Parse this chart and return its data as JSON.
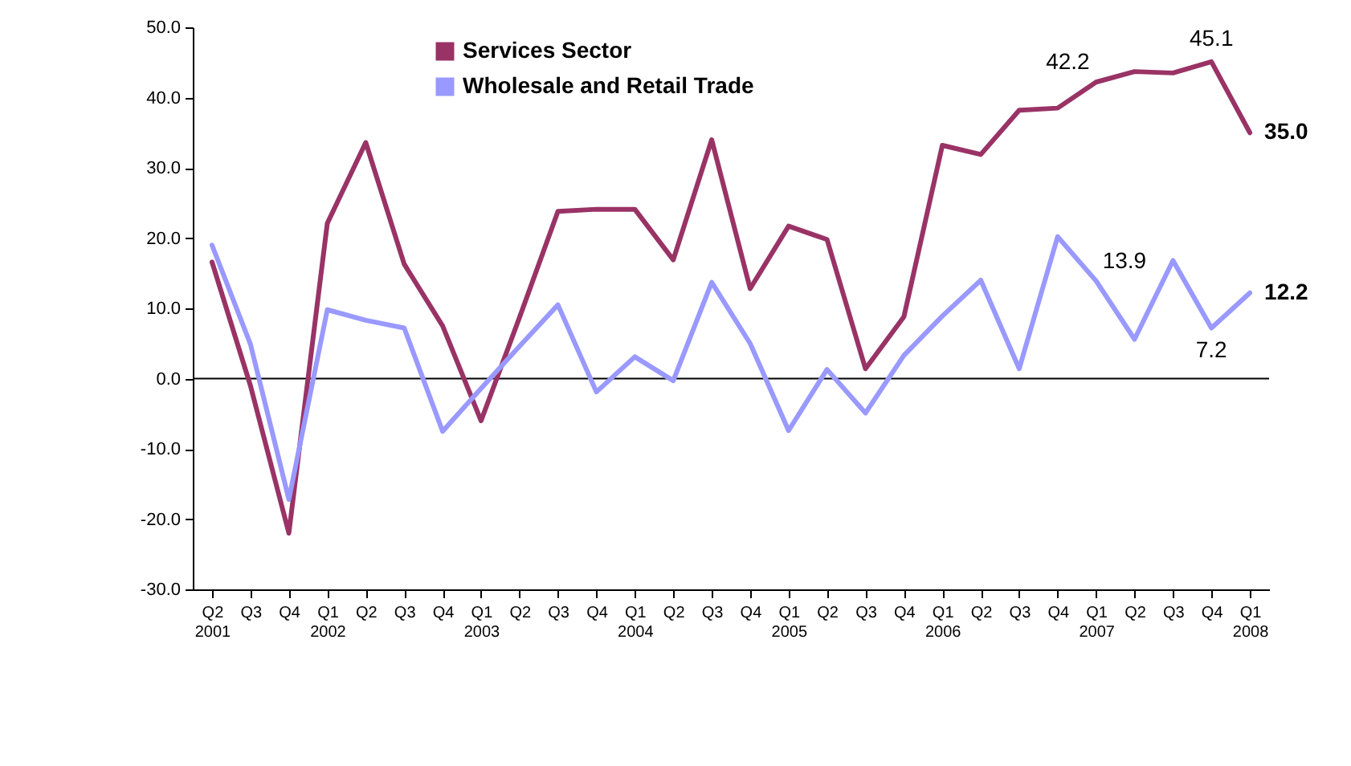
{
  "chart_data": {
    "type": "line",
    "categories": [
      "Q2 2001",
      "Q3",
      "Q4",
      "Q1 2002",
      "Q2",
      "Q3",
      "Q4",
      "Q1 2003",
      "Q2",
      "Q3",
      "Q4",
      "Q1 2004",
      "Q2",
      "Q3",
      "Q4",
      "Q1 2005",
      "Q2",
      "Q3",
      "Q4",
      "Q1 2006",
      "Q2",
      "Q3",
      "Q4",
      "Q1 2007",
      "Q2",
      "Q3",
      "Q4",
      "Q1 2008"
    ],
    "series": [
      {
        "name": "Services Sector",
        "color": "#993366",
        "values": [
          16.6,
          -1.0,
          -22.0,
          22.1,
          33.6,
          16.3,
          7.5,
          -6.0,
          8.7,
          23.8,
          24.1,
          24.1,
          16.9,
          34.0,
          12.8,
          21.7,
          19.8,
          1.4,
          8.8,
          33.2,
          31.9,
          38.2,
          38.5,
          42.2,
          43.7,
          43.5,
          45.1,
          35.0
        ],
        "value_labels": [
          null,
          null,
          null,
          null,
          null,
          null,
          null,
          null,
          null,
          null,
          null,
          null,
          null,
          null,
          null,
          null,
          null,
          null,
          null,
          null,
          null,
          null,
          null,
          "42.2",
          null,
          null,
          "45.1",
          "35.0"
        ]
      },
      {
        "name": "Wholesale and Retail Trade",
        "color": "#9999ff",
        "values": [
          19.0,
          4.9,
          -17.2,
          9.8,
          8.3,
          7.2,
          -7.5,
          -1.4,
          4.6,
          10.5,
          -1.9,
          3.1,
          -0.3,
          13.7,
          5.0,
          -7.4,
          1.3,
          -4.9,
          3.3,
          8.9,
          14.0,
          1.4,
          20.2,
          13.9,
          5.6,
          16.8,
          7.2,
          12.2
        ],
        "value_labels": [
          null,
          null,
          null,
          null,
          null,
          null,
          null,
          null,
          null,
          null,
          null,
          null,
          null,
          null,
          null,
          null,
          null,
          null,
          null,
          null,
          null,
          null,
          null,
          "13.9",
          null,
          null,
          "7.2",
          "12.2"
        ]
      }
    ],
    "ylim": [
      -30,
      50
    ],
    "yticks": [
      {
        "value": -30,
        "label": "-30.0"
      },
      {
        "value": -20,
        "label": "-20.0"
      },
      {
        "value": -10,
        "label": "-10.0"
      },
      {
        "value": 0,
        "label": "0.0"
      },
      {
        "value": 10,
        "label": "10.0"
      },
      {
        "value": 20,
        "label": "20.0"
      },
      {
        "value": 30,
        "label": "30.0"
      },
      {
        "value": 40,
        "label": "40.0"
      },
      {
        "value": 50,
        "label": "50.0"
      }
    ],
    "legend": "top",
    "ref_lines": [
      {
        "axis": "y",
        "value": 0,
        "color": "#000000"
      }
    ]
  }
}
